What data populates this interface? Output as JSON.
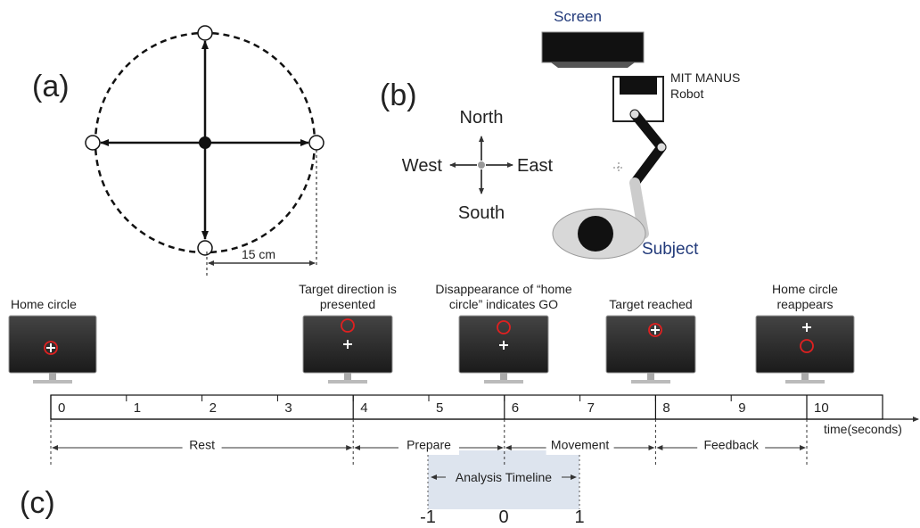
{
  "panel_a": {
    "label": "(a)",
    "scale": "15 cm"
  },
  "panel_b": {
    "label": "(b)",
    "screen": "Screen",
    "robot": [
      "MIT MANUS",
      "Robot"
    ],
    "subject": "Subject",
    "compass": {
      "north": "North",
      "south": "South",
      "west": "West",
      "east": "East"
    }
  },
  "panel_c": {
    "label": "(c)",
    "events": [
      {
        "lines": [
          "Home circle"
        ]
      },
      {
        "lines": [
          "Target direction is",
          "presented"
        ]
      },
      {
        "lines": [
          "Disappearance of “home",
          "circle” indicates GO"
        ]
      },
      {
        "lines": [
          "Target reached"
        ]
      },
      {
        "lines": [
          "Home circle",
          "reappears"
        ]
      }
    ],
    "ticks": [
      "0",
      "1",
      "2",
      "3",
      "4",
      "5",
      "6",
      "7",
      "8",
      "9",
      "10"
    ],
    "axis_label": "time(seconds)",
    "phases": [
      "Rest",
      "Prepare",
      "Movement",
      "Feedback"
    ],
    "analysis": {
      "title": "Analysis Timeline",
      "ticks": [
        "-1",
        "0",
        "1"
      ]
    }
  }
}
